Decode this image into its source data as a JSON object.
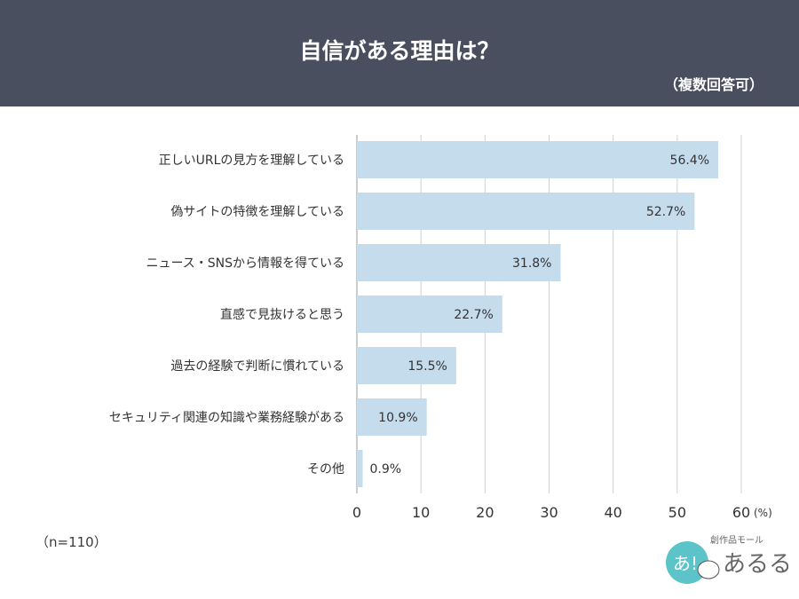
{
  "header": {
    "title": "自信がある理由は？",
    "note": "（複数回答可）"
  },
  "footnote": "（n=110）",
  "logo": {
    "text": "あるる",
    "subtext": "創作品モール",
    "badge": "あ!"
  },
  "colors": {
    "bar": "#c5dcec",
    "header": "#4a4f5f",
    "grid": "#d0d0d0"
  },
  "chart_data": {
    "type": "bar",
    "orientation": "horizontal",
    "categories": [
      "正しいURLの見方を理解している",
      "偽サイトの特徴を理解している",
      "ニュース・SNSから情報を得ている",
      "直感で見抜けると思う",
      "過去の経験で判断に慣れている",
      "セキュリティ関連の知識や業務経験がある",
      "その他"
    ],
    "values": [
      56.4,
      52.7,
      31.8,
      22.7,
      15.5,
      10.9,
      0.9
    ],
    "labels": [
      "56.4%",
      "52.7%",
      "31.8%",
      "22.7%",
      "15.5%",
      "10.9%",
      "0.9%"
    ],
    "xlim": [
      0,
      60
    ],
    "ticks": [
      "0",
      "10",
      "20",
      "30",
      "40",
      "50",
      "60"
    ],
    "unit": "(%)",
    "grid": true
  }
}
